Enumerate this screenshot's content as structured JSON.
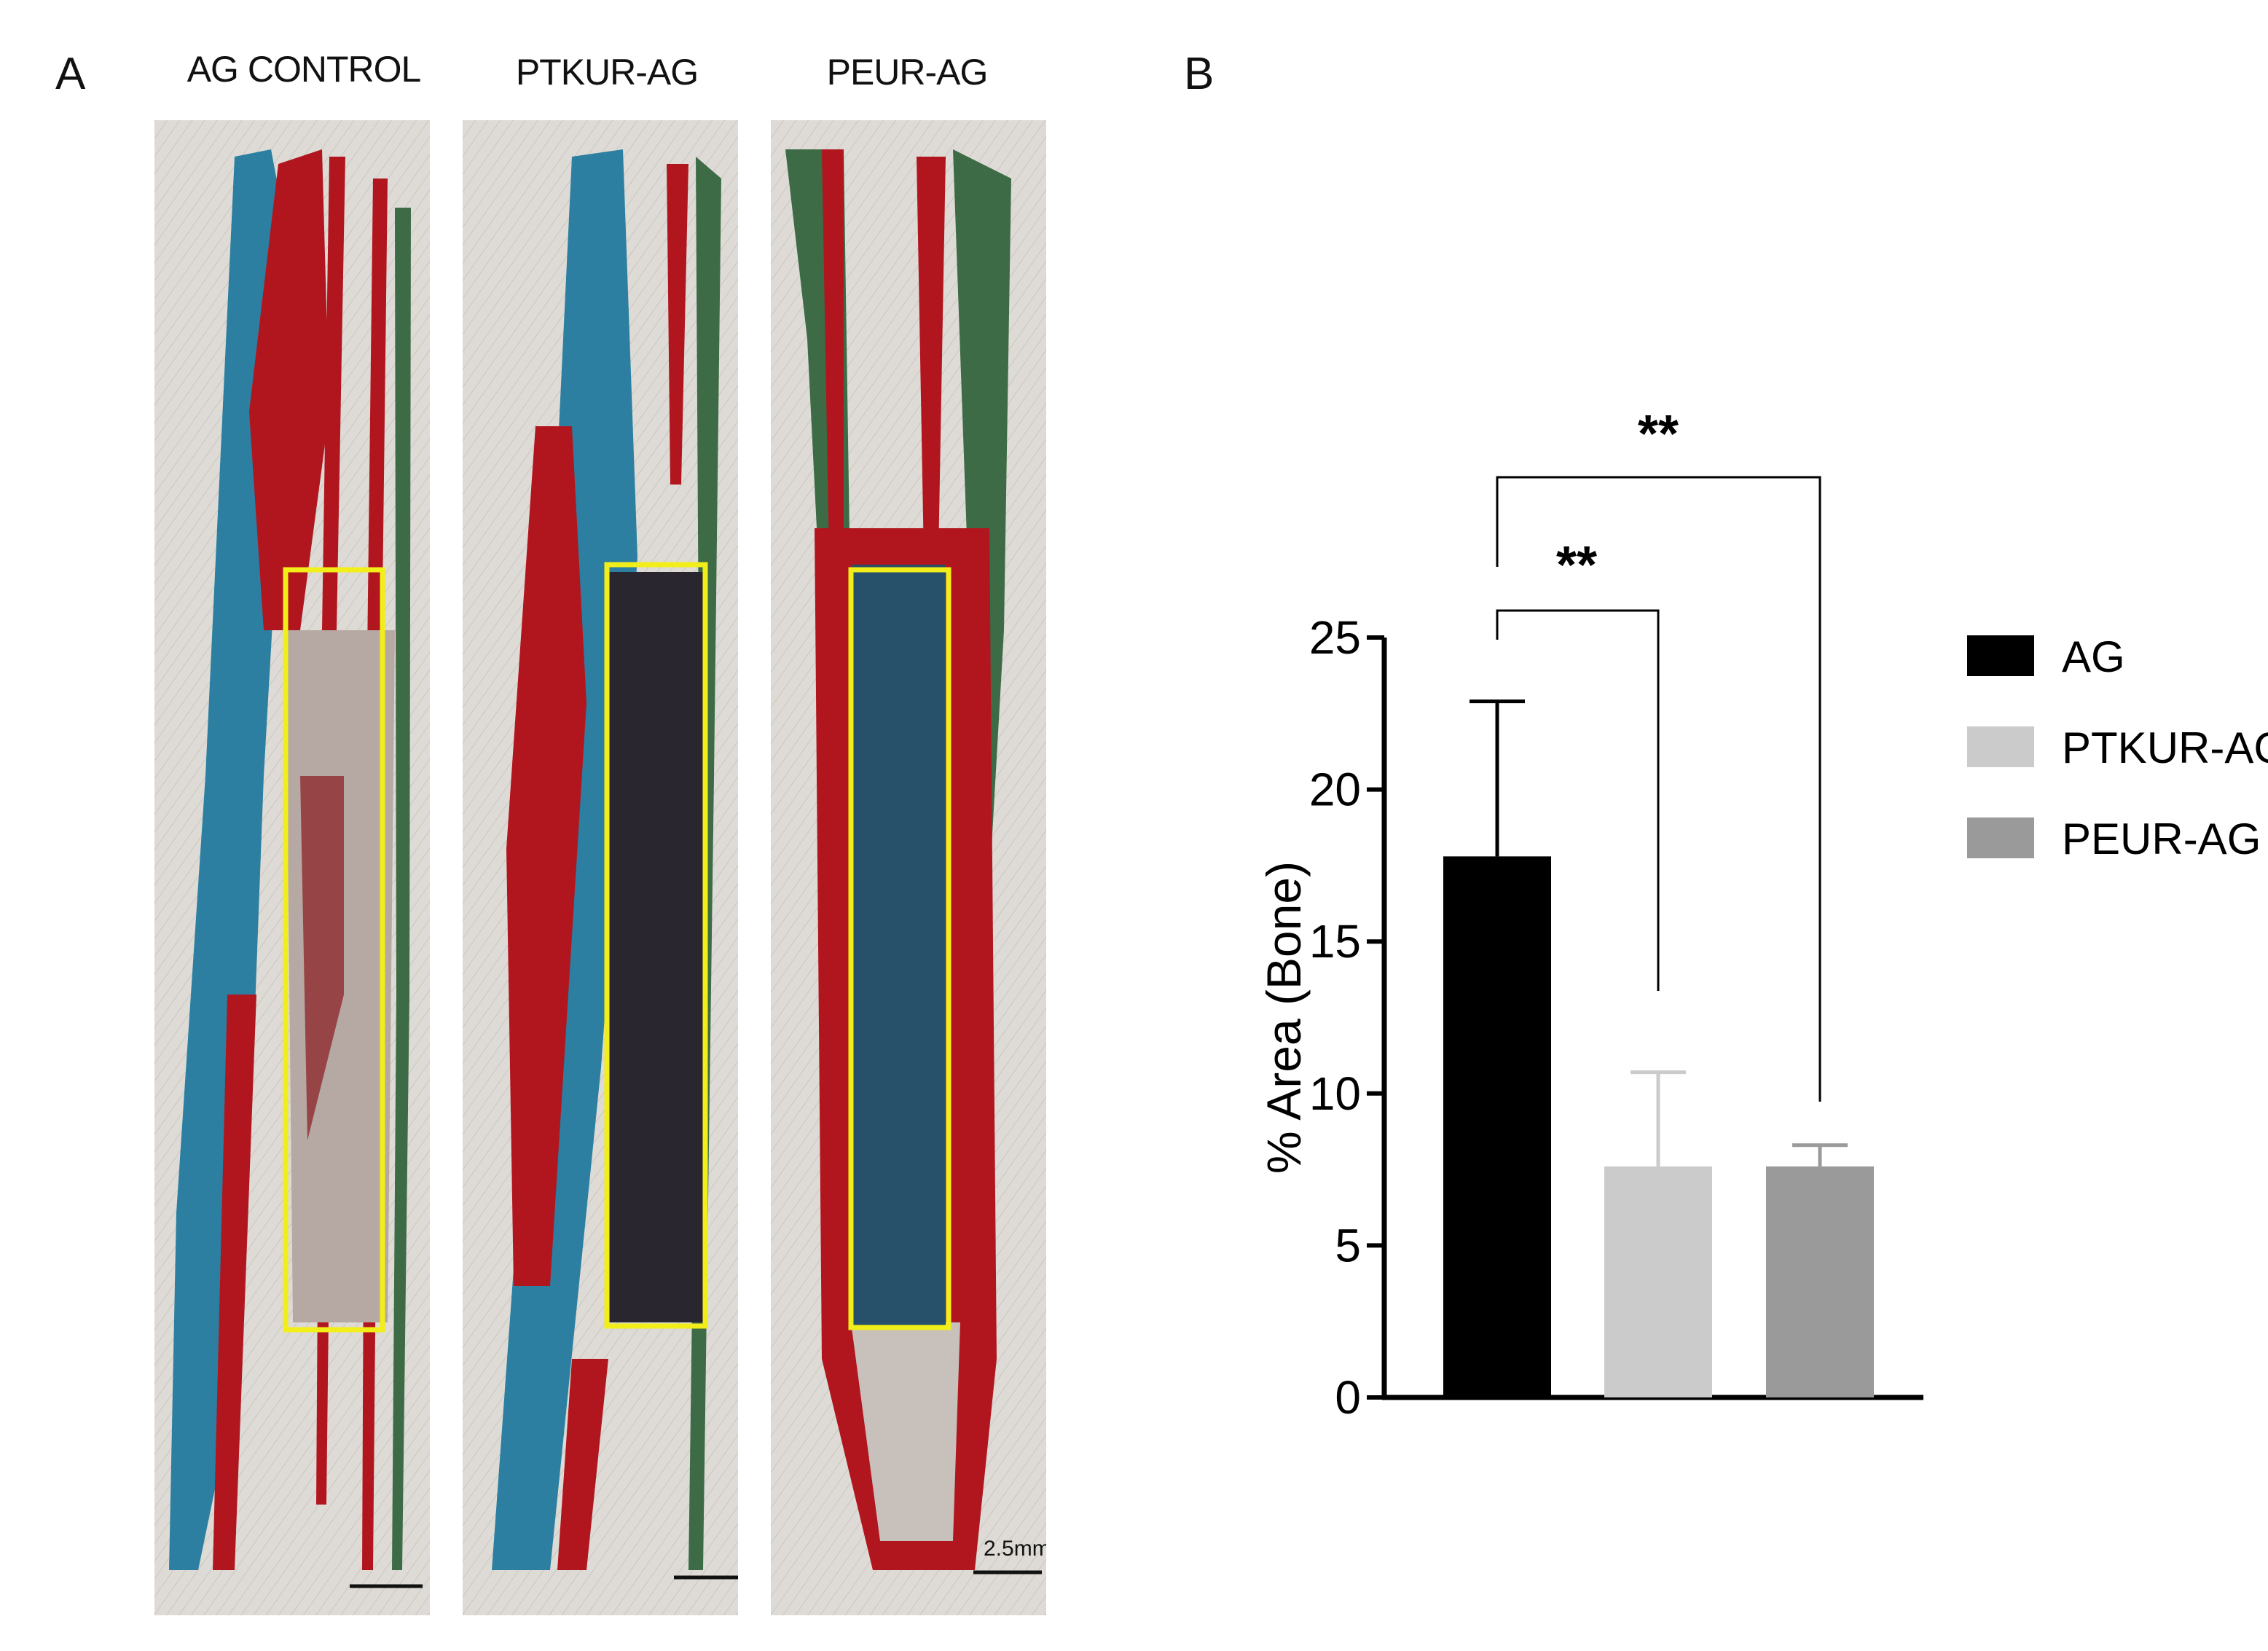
{
  "panel_a": {
    "letter": "A",
    "columns": [
      {
        "title": "AG CONTROL"
      },
      {
        "title": "PTKUR-AG"
      },
      {
        "title": "PEUR-AG"
      }
    ],
    "scale_label": "2.5mm",
    "colors": {
      "bone_red": "#b1161f",
      "teal": "#2c7fa0",
      "green": "#3d6b45",
      "background": "#dedbd6",
      "roi_box": "#f2ee1a"
    }
  },
  "panel_b": {
    "letter": "B"
  },
  "chart_data": {
    "type": "bar",
    "categories": [
      "AG",
      "PTKUR-AG",
      "PEUR-AG"
    ],
    "values": [
      17.8,
      7.6,
      7.6
    ],
    "error_upper": [
      22.9,
      10.7,
      8.3
    ],
    "colors": [
      "#000000",
      "#cbcbcb",
      "#9a9a9a"
    ],
    "ylabel": "% Area (Bone)",
    "ylim": [
      0,
      25
    ],
    "yticks": [
      0,
      5,
      10,
      15,
      20,
      25
    ],
    "grid": false,
    "legend": {
      "position": "right",
      "entries": [
        "AG",
        "PTKUR-AG",
        "PEUR-AG"
      ]
    },
    "significance": [
      {
        "from": "AG",
        "to": "PTKUR-AG",
        "label": "**"
      },
      {
        "from": "AG",
        "to": "PEUR-AG",
        "label": "**"
      }
    ]
  }
}
